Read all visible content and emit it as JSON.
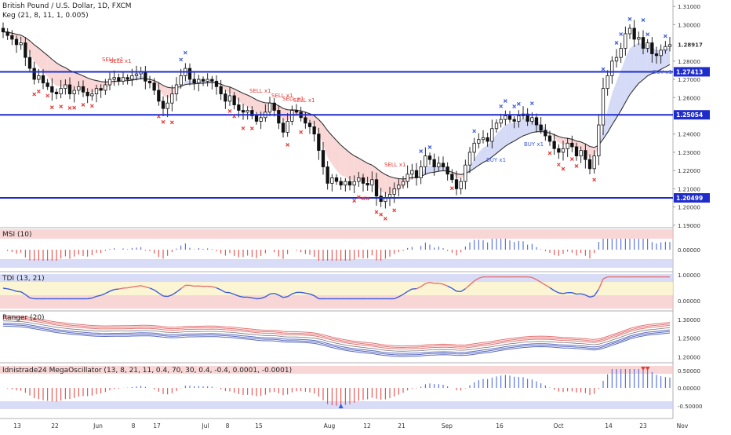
{
  "header": {
    "symbol_title": "British Pound / U.S. Dollar, 1D, FXCM",
    "indicator_label": "Keg (21, 8, 11, 1, 0.005)"
  },
  "colors": {
    "hline": "#1f2ccc",
    "bull": "#ffffff",
    "bear": "#111111",
    "sell": "#e53935",
    "buy": "#3b5bdb",
    "upper_band": "#e57373",
    "lower_band": "#5c6bc0",
    "fill_red": "#f8c9c9",
    "fill_blue": "#c7cdf3",
    "mid_line": "#333333"
  },
  "price_axis": {
    "ticks": [
      "1.31000",
      "1.30000",
      "1.28917",
      "1.28000",
      "1.27413",
      "1.27000",
      "1.26000",
      "1.25054",
      "1.24000",
      "1.23000",
      "1.22000",
      "1.21000",
      "1.20499",
      "1.20000",
      "1.19000"
    ],
    "ylim": [
      1.1895,
      1.3135
    ],
    "highlighted": [
      "1.27413",
      "1.25054",
      "1.20499"
    ],
    "current": "1.28917"
  },
  "horizontal_levels": [
    1.27413,
    1.25054,
    1.20499
  ],
  "time_axis": [
    "13",
    "22",
    "Jun",
    "8",
    "17",
    "Jul",
    "8",
    "15",
    "Aug",
    "12",
    "21",
    "Sep",
    "16",
    "Oct",
    "14",
    "23",
    "Nov"
  ],
  "signals": {
    "sell_labels": [
      "SELL x1",
      "SELL x1",
      "SELL x1",
      "SELL x1",
      "SELL x1",
      "SELL x1",
      "SELL x1"
    ],
    "buy_labels": [
      "BUY x1",
      "BUY x1",
      "BUY x1"
    ]
  },
  "panes": {
    "msi": {
      "label": "MSI (10)",
      "axis": [
        "0.00000"
      ]
    },
    "tdi": {
      "label": "TDI (13, 21)",
      "axis": [
        "1.00000",
        "0.00000"
      ]
    },
    "ranger": {
      "label": "Ranger (20)",
      "axis": [
        "1.30000",
        "1.25000",
        "1.20000"
      ]
    },
    "mega": {
      "label": "Idnistrade24 MegaOscillator (13, 8, 21, 11, 0.4, 70, 30, 0.4, -0.4, 0.0001, -0.0001)",
      "axis": [
        "0.50000",
        "0.00000",
        "-0.50000"
      ]
    }
  },
  "chart_data": {
    "type": "candlestick",
    "title": "British Pound / U.S. Dollar, 1D, FXCM",
    "x_labels": [
      "13",
      "22",
      "Jun",
      "8",
      "17",
      "Jul",
      "8",
      "15",
      "Aug",
      "12",
      "21",
      "Sep",
      "16",
      "Oct",
      "14",
      "23",
      "Nov"
    ],
    "ylim": [
      1.19,
      1.31
    ],
    "levels": [
      1.27413,
      1.25054,
      1.20499
    ],
    "close": [
      1.296,
      1.294,
      1.292,
      1.289,
      1.29,
      1.282,
      1.276,
      1.27,
      1.272,
      1.268,
      1.266,
      1.263,
      1.262,
      1.265,
      1.267,
      1.262,
      1.264,
      1.266,
      1.263,
      1.261,
      1.262,
      1.265,
      1.264,
      1.267,
      1.27,
      1.271,
      1.269,
      1.271,
      1.27,
      1.272,
      1.273,
      1.274,
      1.269,
      1.268,
      1.264,
      1.258,
      1.254,
      1.257,
      1.262,
      1.267,
      1.272,
      1.276,
      1.27,
      1.268,
      1.27,
      1.269,
      1.27,
      1.269,
      1.266,
      1.262,
      1.258,
      1.261,
      1.256,
      1.253,
      1.252,
      1.253,
      1.25,
      1.247,
      1.249,
      1.252,
      1.257,
      1.253,
      1.246,
      1.241,
      1.247,
      1.253,
      1.252,
      1.249,
      1.246,
      1.244,
      1.24,
      1.231,
      1.222,
      1.213,
      1.216,
      1.214,
      1.212,
      1.214,
      1.212,
      1.214,
      1.216,
      1.213,
      1.212,
      1.215,
      1.206,
      1.203,
      1.205,
      1.207,
      1.21,
      1.212,
      1.214,
      1.218,
      1.22,
      1.216,
      1.222,
      1.228,
      1.226,
      1.222,
      1.224,
      1.222,
      1.218,
      1.215,
      1.21,
      1.214,
      1.223,
      1.23,
      1.235,
      1.237,
      1.238,
      1.236,
      1.243,
      1.246,
      1.248,
      1.25,
      1.248,
      1.247,
      1.25,
      1.251,
      1.247,
      1.249,
      1.245,
      1.242,
      1.239,
      1.236,
      1.232,
      1.23,
      1.232,
      1.235,
      1.233,
      1.228,
      1.231,
      1.226,
      1.221,
      1.228,
      1.245,
      1.265,
      1.272,
      1.28,
      1.282,
      1.287,
      1.295,
      1.298,
      1.292,
      1.293,
      1.287,
      1.29,
      1.284,
      1.283,
      1.286,
      1.288,
      1.289
    ]
  }
}
